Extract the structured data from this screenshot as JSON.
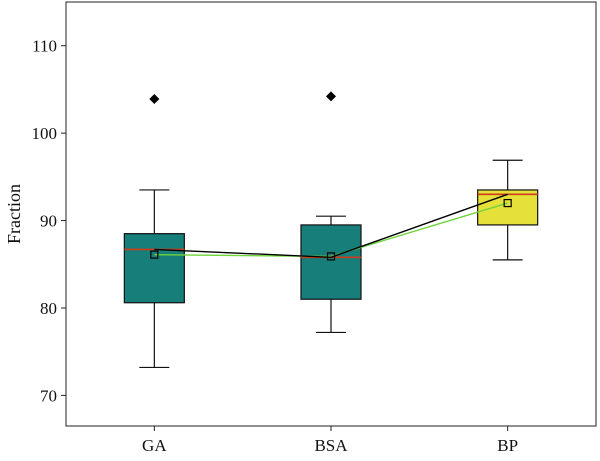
{
  "chart_data": {
    "type": "box",
    "title": "",
    "xlabel": "",
    "ylabel": "Fraction",
    "ylim": [
      66.5,
      115
    ],
    "yticks": [
      70,
      80,
      90,
      100,
      110
    ],
    "categories": [
      "GA",
      "BSA",
      "BP"
    ],
    "boxes": [
      {
        "category": "GA",
        "min": 73.2,
        "q1": 80.6,
        "median": 86.7,
        "q3": 88.5,
        "max": 93.5,
        "mean": 86.1,
        "outliers": [
          103.9
        ],
        "color": "#177e7a"
      },
      {
        "category": "BSA",
        "min": 77.2,
        "q1": 81.0,
        "median": 85.8,
        "q3": 89.5,
        "max": 90.5,
        "mean": 85.9,
        "outliers": [
          104.2
        ],
        "color": "#177e7a"
      },
      {
        "category": "BP",
        "min": 85.5,
        "q1": 89.5,
        "median": 93.0,
        "q3": 93.5,
        "max": 96.9,
        "mean": 92.0,
        "outliers": [],
        "color": "#e6e03a"
      }
    ],
    "median_line_color": "#000000",
    "mean_line_color": "#6fd33a",
    "median_mark_color": "#d03a1a",
    "grid": false,
    "legend": "none"
  }
}
